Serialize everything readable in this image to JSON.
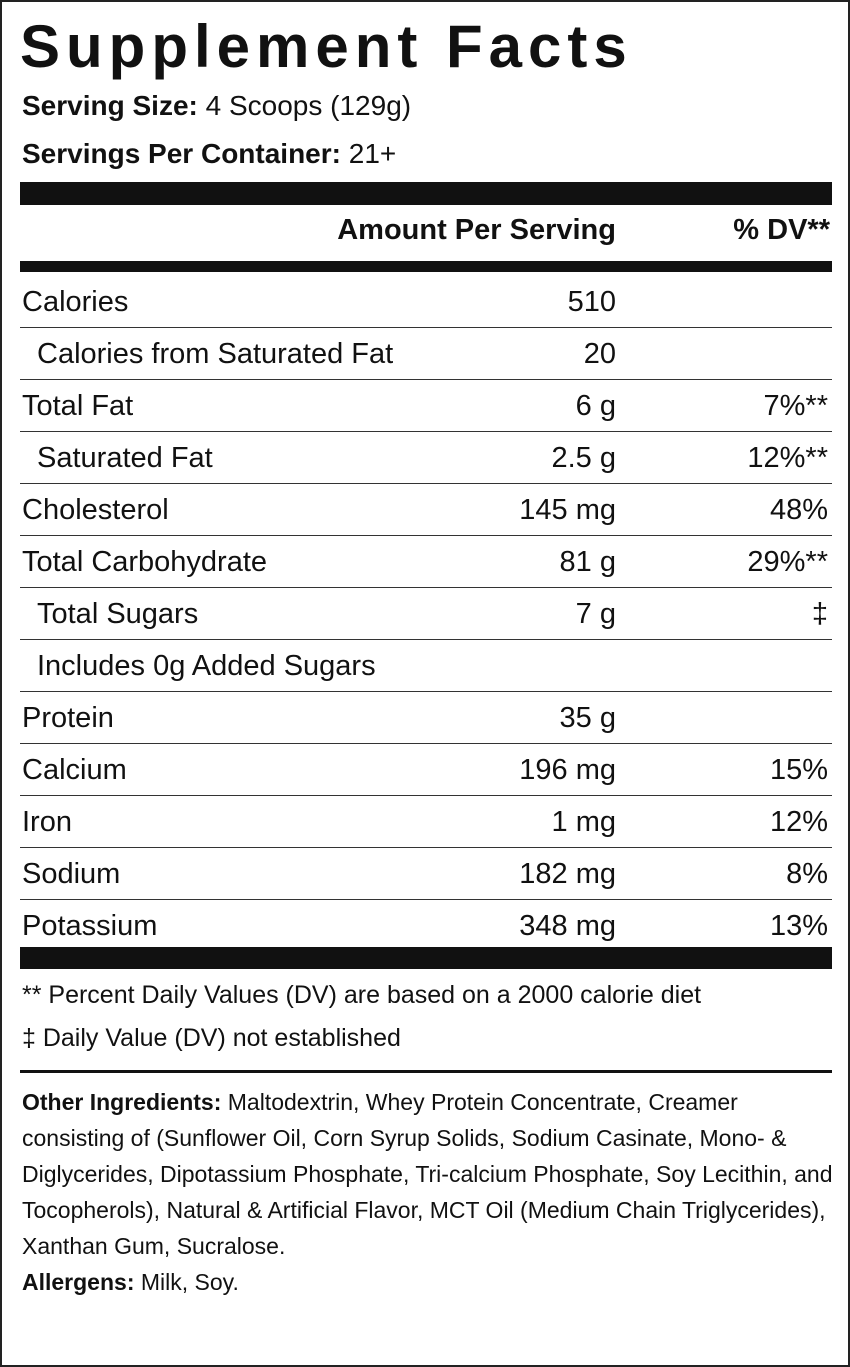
{
  "header": {
    "title": "Supplement Facts",
    "serving_size": {
      "label": "Serving Size:",
      "value": "4 Scoops (129g)"
    },
    "servings_per_container": {
      "label": "Servings Per Container:",
      "value": "21+"
    }
  },
  "table": {
    "columns": [
      "Amount Per Serving",
      "% DV**"
    ],
    "rows": [
      {
        "name": "Calories",
        "amount": "510"
      },
      {
        "name": "Calories from Saturated Fat",
        "amount": "20",
        "indent": true
      },
      {
        "name": "Total Fat",
        "amount": "6 g",
        "dv": "7%**"
      },
      {
        "name": "Saturated Fat",
        "amount": "2.5 g",
        "dv": "12%**",
        "indent": true
      },
      {
        "name": "Cholesterol",
        "amount": "145 mg",
        "dv": "48%"
      },
      {
        "name": "Total Carbohydrate",
        "amount": "81 g",
        "dv": "29%**"
      },
      {
        "name": "Total Sugars",
        "amount": "7 g",
        "dv": "‡",
        "indent": true
      },
      {
        "name": "Includes 0g Added Sugars",
        "indent": true
      },
      {
        "name": "Protein",
        "amount": "35 g"
      },
      {
        "name": "Calcium",
        "amount": "196 mg",
        "dv": "15%"
      },
      {
        "name": "Iron",
        "amount": "1 mg",
        "dv": "12%"
      },
      {
        "name": "Sodium",
        "amount": "182 mg",
        "dv": "8%"
      },
      {
        "name": "Potassium",
        "amount": "348 mg",
        "dv": "13%"
      }
    ]
  },
  "footnotes": [
    "** Percent Daily Values (DV) are based on a 2000 calorie diet",
    "‡ Daily Value (DV) not established"
  ],
  "other_ingredients": {
    "label": "Other Ingredients:",
    "text": "Maltodextrin, Whey Protein Concentrate, Creamer consisting of (Sunflower Oil, Corn Syrup Solids, Sodium Casinate, Mono- & Diglycerides, Dipotassium Phosphate, Tri-calcium Phosphate, Soy Lecithin, and Tocopherols), Natural & Artificial Flavor, MCT Oil (Medium Chain Triglycerides), Xanthan Gum, Sucralose."
  },
  "allergens": {
    "label": "Allergens:",
    "text": "Milk, Soy."
  }
}
